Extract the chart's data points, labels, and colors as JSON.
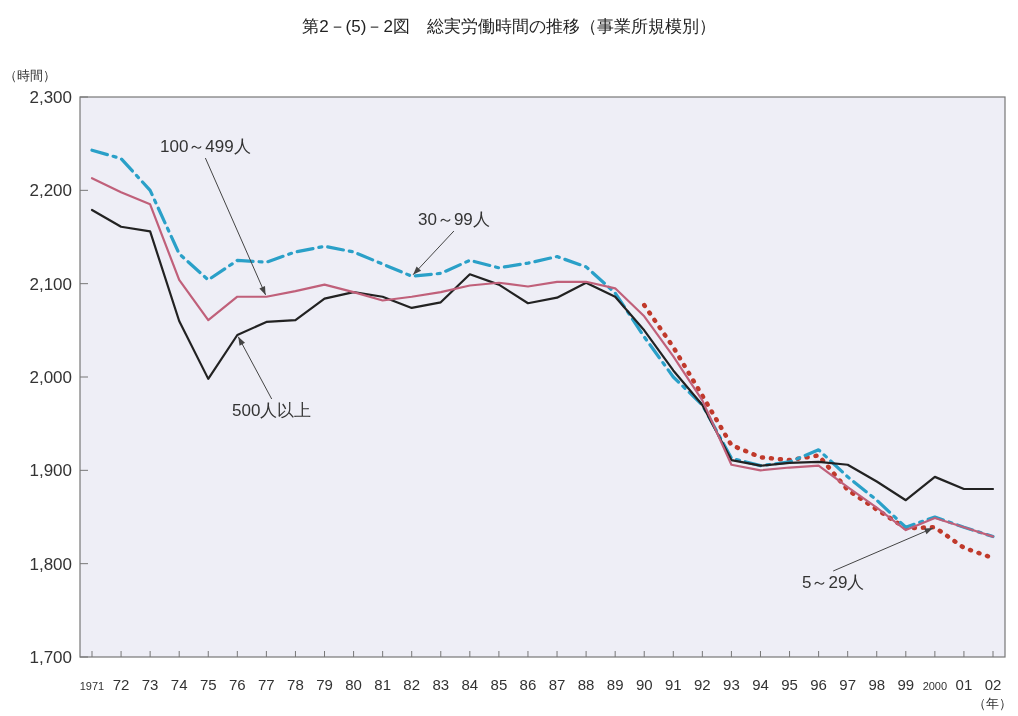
{
  "chart_data": {
    "type": "line",
    "title": "第2－(5)－2図　総実労働時間の推移（事業所規模別）",
    "xlabel": "（年）",
    "ylabel": "（時間）",
    "categories": [
      "1971",
      "72",
      "73",
      "74",
      "75",
      "76",
      "77",
      "78",
      "79",
      "80",
      "81",
      "82",
      "83",
      "84",
      "85",
      "86",
      "87",
      "88",
      "89",
      "90",
      "91",
      "92",
      "93",
      "94",
      "95",
      "96",
      "97",
      "98",
      "99",
      "2000",
      "01",
      "02"
    ],
    "ylim": [
      1700,
      2300
    ],
    "yticks": [
      {
        "value": 1700,
        "label": "1,700"
      },
      {
        "value": 1800,
        "label": "1,800"
      },
      {
        "value": 1900,
        "label": "1,900"
      },
      {
        "value": 2000,
        "label": "2,000"
      },
      {
        "value": 2100,
        "label": "2,100"
      },
      {
        "value": 2200,
        "label": "2,200"
      },
      {
        "value": 2300,
        "label": "2,300"
      }
    ],
    "grid": false,
    "legend": false,
    "series": [
      {
        "name": "500人以上",
        "color": "#222222",
        "line_style": "solid",
        "values": [
          2179,
          2161,
          2156,
          2060,
          1998,
          2045,
          2059,
          2061,
          2084,
          2091,
          2086,
          2074,
          2080,
          2110,
          2099,
          2079,
          2085,
          2101,
          2086,
          2050,
          2007,
          1970,
          1911,
          1905,
          1908,
          1909,
          1906,
          1888,
          1868,
          1893,
          1880,
          1880
        ]
      },
      {
        "name": "100～499人",
        "color": "#c0607a",
        "line_style": "solid",
        "values": [
          2213,
          2198,
          2185,
          2104,
          2061,
          2086,
          2086,
          2092,
          2099,
          2091,
          2082,
          2086,
          2091,
          2098,
          2101,
          2097,
          2102,
          2102,
          2095,
          2065,
          2022,
          1975,
          1906,
          1900,
          1903,
          1905,
          1882,
          1860,
          1836,
          1849,
          1839,
          1829
        ]
      },
      {
        "name": "30～99人",
        "color": "#2aa0c8",
        "line_style": "dashed",
        "values": [
          2243,
          2234,
          2200,
          2132,
          2104,
          2125,
          2123,
          2134,
          2140,
          2134,
          2121,
          2108,
          2111,
          2125,
          2117,
          2122,
          2129,
          2118,
          2090,
          2043,
          2000,
          1970,
          1913,
          1905,
          1909,
          1922,
          1893,
          1868,
          1839,
          1850,
          1839,
          1829
        ]
      },
      {
        "name": "5～29人",
        "color": "#c0392b",
        "line_style": "dotted",
        "values": [
          null,
          null,
          null,
          null,
          null,
          null,
          null,
          null,
          null,
          null,
          null,
          null,
          null,
          null,
          null,
          null,
          null,
          null,
          null,
          2077,
          2032,
          1980,
          1927,
          1914,
          1911,
          1916,
          1879,
          1858,
          1838,
          1839,
          1817,
          1806
        ]
      }
    ]
  }
}
